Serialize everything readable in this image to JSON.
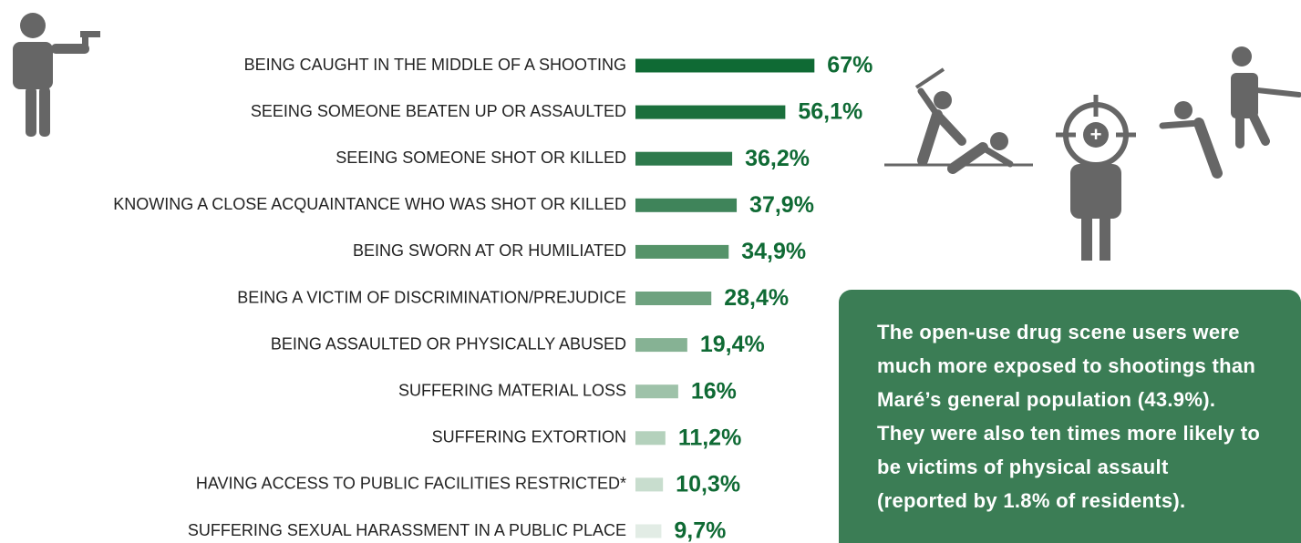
{
  "chart_data": {
    "type": "bar",
    "categories": [
      "BEING CAUGHT IN THE MIDDLE OF A SHOOTING",
      "SEEING SOMEONE BEATEN UP OR ASSAULTED",
      "SEEING SOMEONE SHOT OR KILLED",
      "KNOWING A CLOSE ACQUAINTANCE WHO WAS SHOT OR KILLED",
      "BEING SWORN AT OR HUMILIATED",
      "BEING A VICTIM OF DISCRIMINATION/PREJUDICE",
      "BEING ASSAULTED OR PHYSICALLY ABUSED",
      "SUFFERING MATERIAL LOSS",
      "SUFFERING EXTORTION",
      "HAVING ACCESS TO PUBLIC FACILITIES RESTRICTED*",
      "SUFFERING SEXUAL HARASSMENT IN A PUBLIC PLACE"
    ],
    "values": [
      67,
      56.1,
      36.2,
      37.9,
      34.9,
      28.4,
      19.4,
      16,
      11.2,
      10.3,
      9.7
    ],
    "value_labels": [
      "67%",
      "56,1%",
      "36,2%",
      "37,9%",
      "34,9%",
      "28,4%",
      "19,4%",
      "16%",
      "11,2%",
      "10,3%",
      "9,7%"
    ],
    "colors": [
      "#0f6a34",
      "#1b703d",
      "#2e7a4c",
      "#3f845a",
      "#559369",
      "#6ea27f",
      "#86b294",
      "#9ec2a9",
      "#b4d1bc",
      "#c8ddce",
      "#e2ece5"
    ],
    "label_color": "#0f6a34",
    "annotation": "The open-use drug scene users were much more exposed to shootings than Maré’s general population (43.9%). They were also ten times more likely to be victims of physical assault (reported by 1.8% of residents)."
  }
}
